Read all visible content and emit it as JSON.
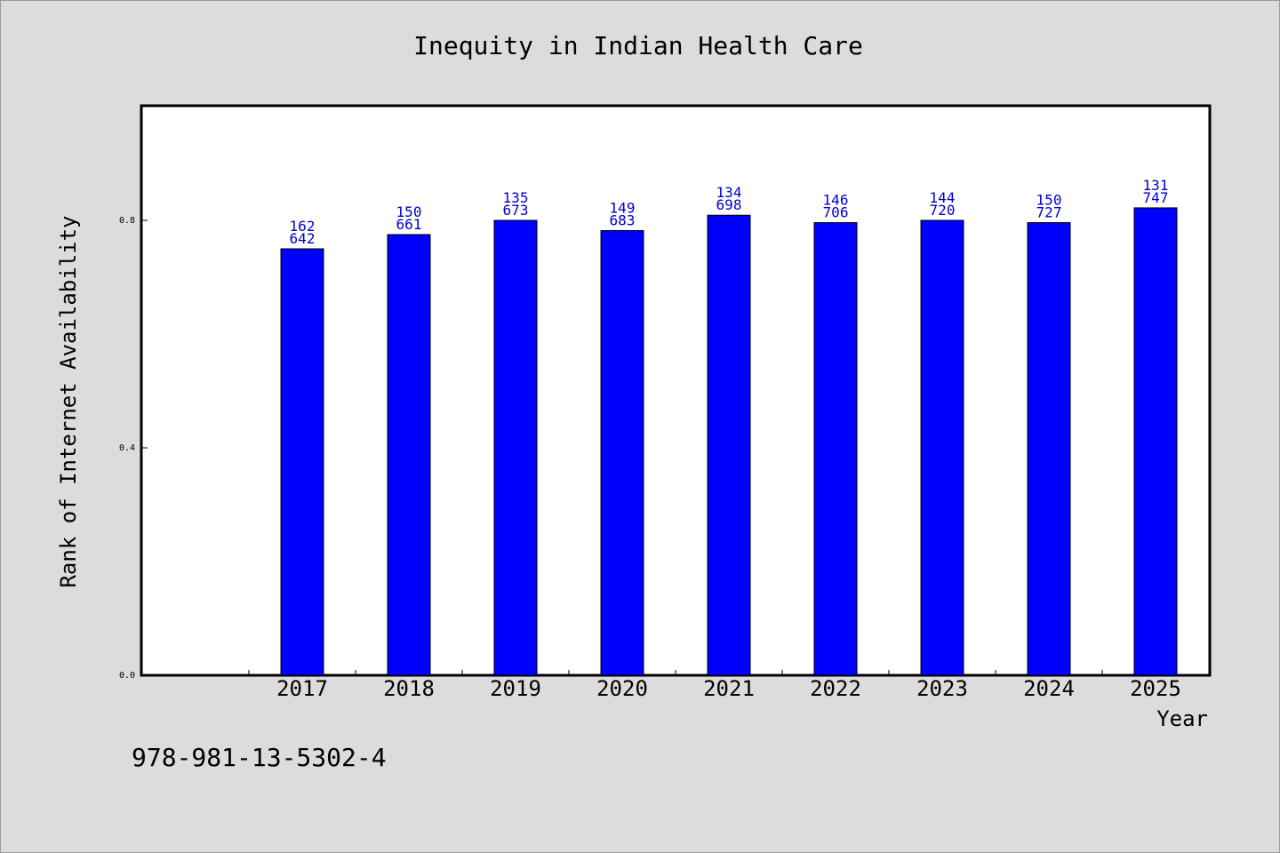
{
  "chart_data": {
    "type": "bar",
    "title": "Inequity in Indian Health Care",
    "xlabel": "Year",
    "ylabel": "Rank of Internet Availability",
    "categories": [
      "2017",
      "2018",
      "2019",
      "2020",
      "2021",
      "2022",
      "2023",
      "2024",
      "2025"
    ],
    "values": [
      0.75,
      0.775,
      0.8,
      0.782,
      0.809,
      0.796,
      0.8,
      0.796,
      0.822
    ],
    "data_labels": [
      [
        "162",
        "642"
      ],
      [
        "150",
        "661"
      ],
      [
        "135",
        "673"
      ],
      [
        "149",
        "683"
      ],
      [
        "134",
        "698"
      ],
      [
        "146",
        "706"
      ],
      [
        "144",
        "720"
      ],
      [
        "150",
        "727"
      ],
      [
        "131",
        "747"
      ]
    ],
    "ylim": [
      0,
      1.0
    ],
    "yticks": [
      0.0,
      0.4,
      0.8
    ],
    "ytick_labels": [
      "0.0",
      "0.4",
      "0.8"
    ],
    "grid": false,
    "legend": "none",
    "colors": {
      "bar": "#0000ff",
      "bar_label": "#0000cc",
      "background": "#dcdcdc",
      "plot_background": "#ffffff"
    }
  },
  "footer": {
    "isbn": "978-981-13-5302-4"
  }
}
